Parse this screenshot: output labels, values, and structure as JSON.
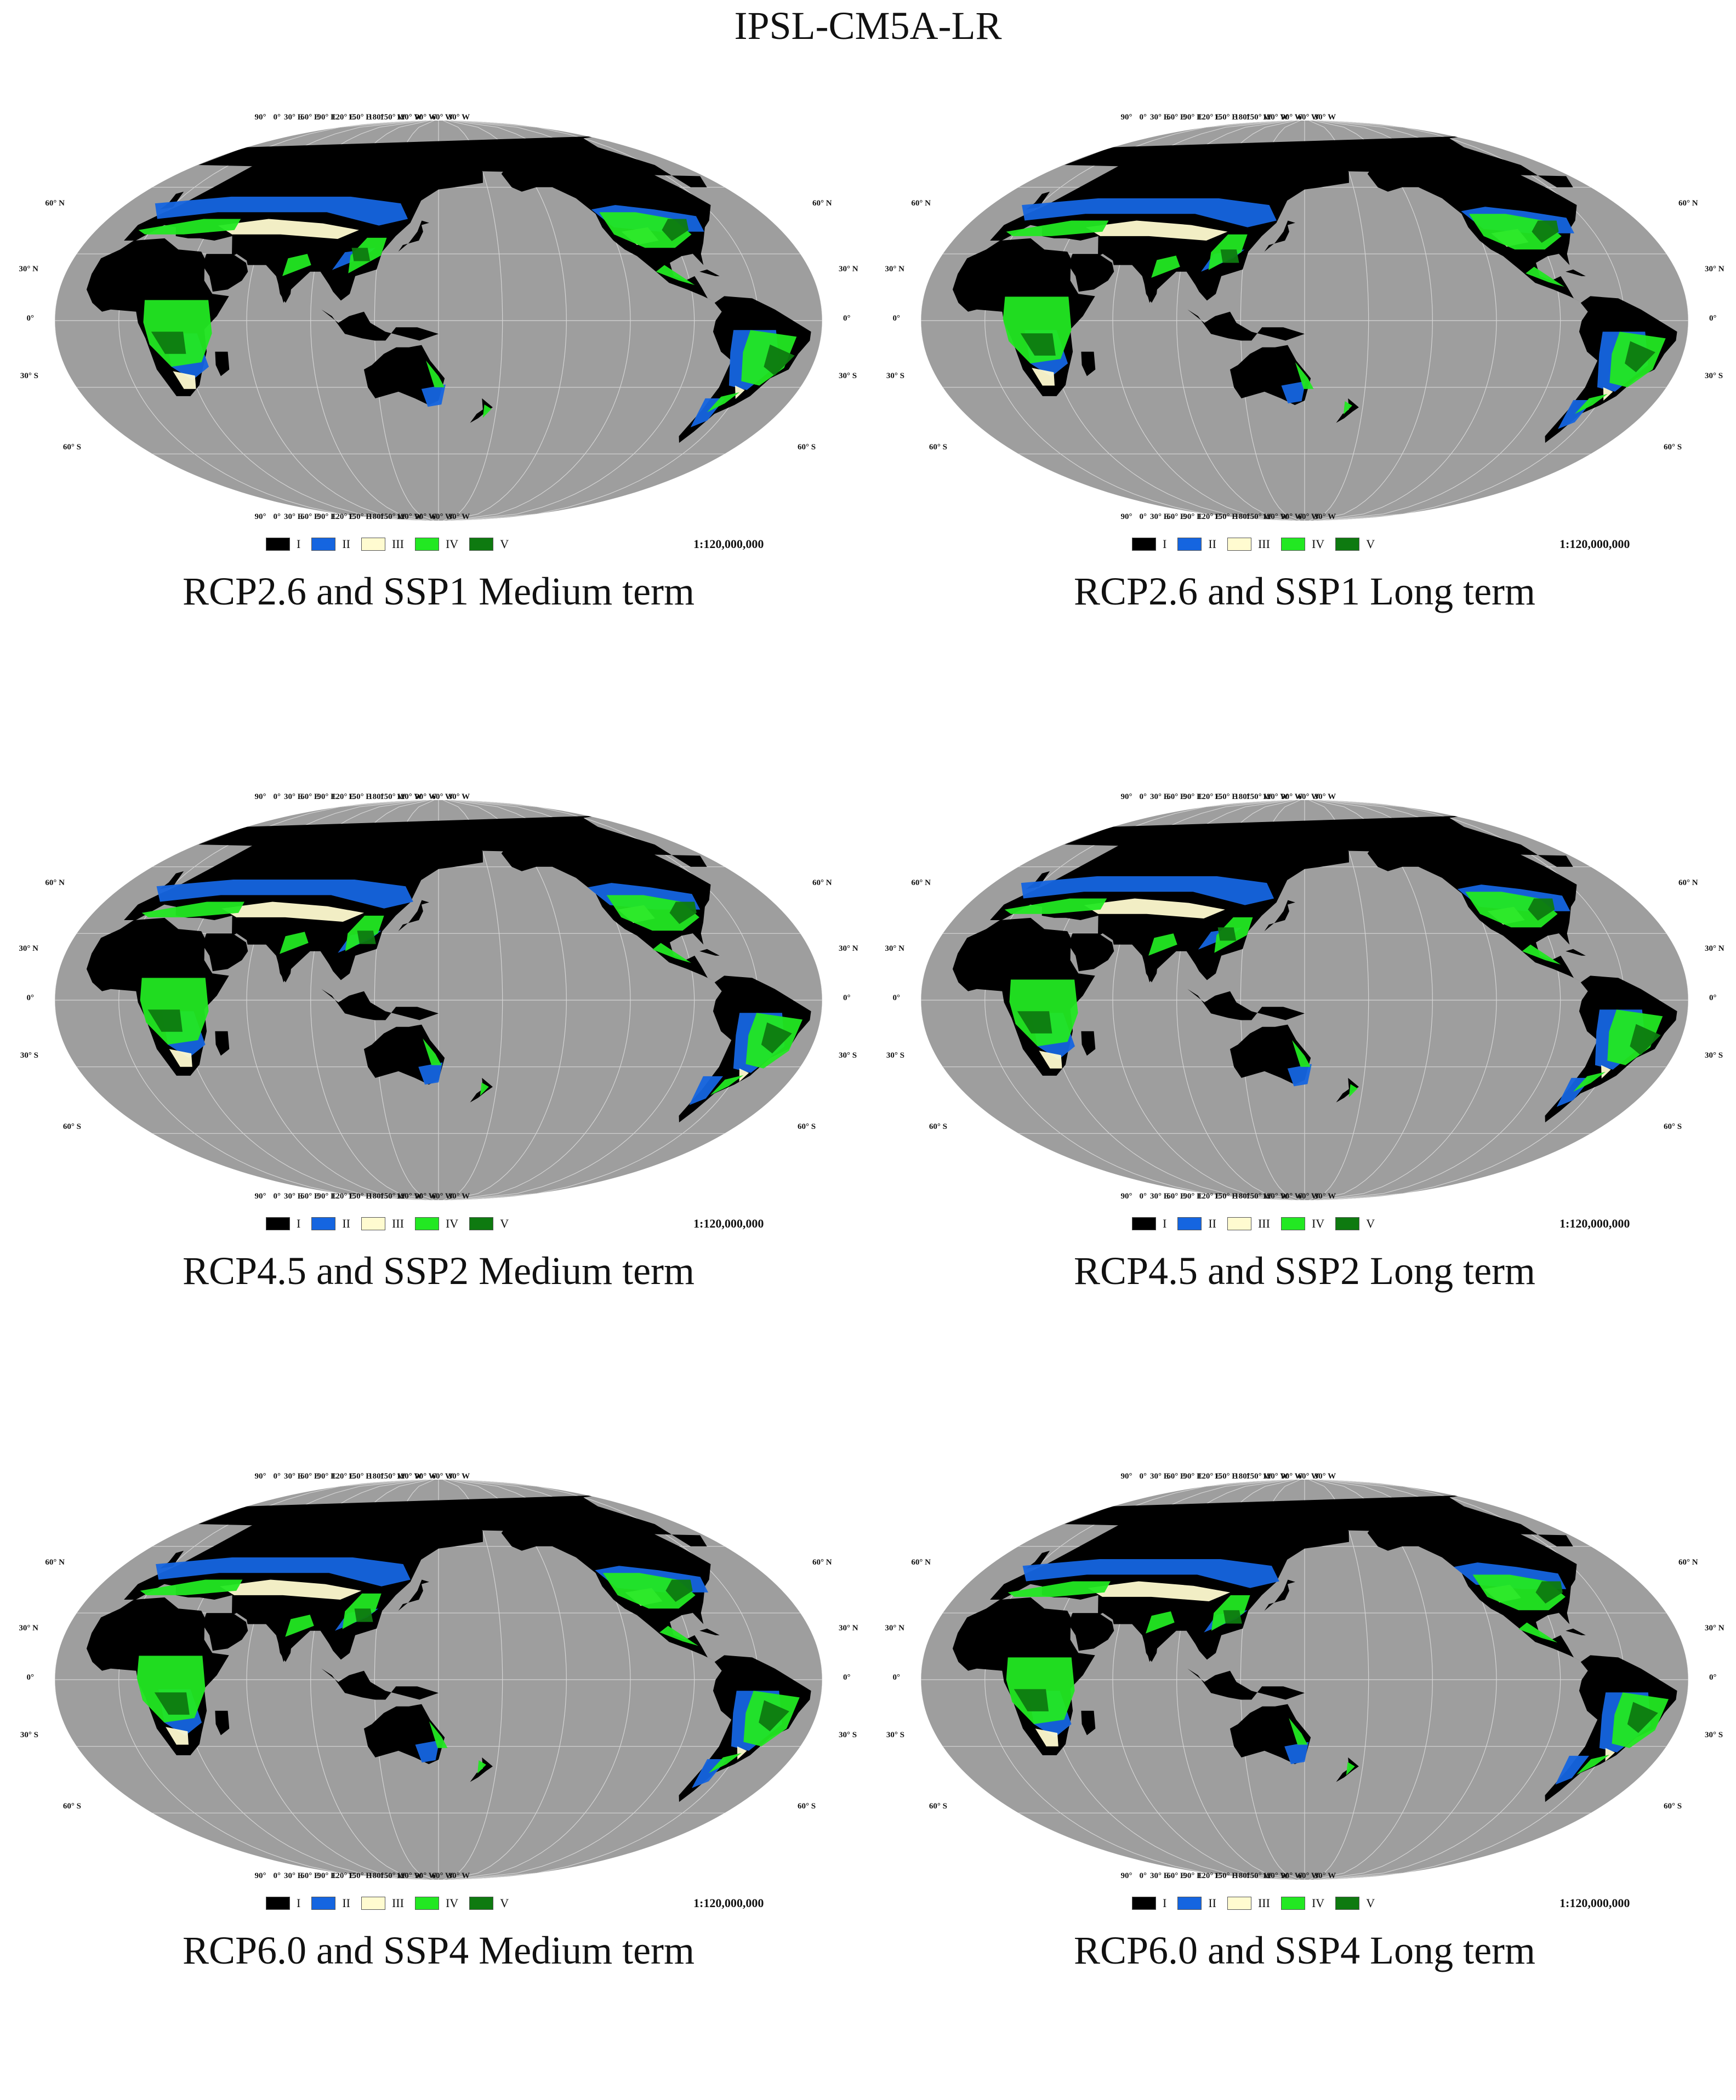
{
  "figure_title": "IPSL-CM5A-LR",
  "colors": {
    "ocean": "#9e9e9e",
    "class_I": "#000000",
    "class_II": "#1565e0",
    "class_III": "#fffbd0",
    "class_IV": "#22e822",
    "class_V": "#0e7a10",
    "graticule": "#d4d4d4"
  },
  "legend": [
    {
      "label": "I",
      "color_key": "class_I"
    },
    {
      "label": "II",
      "color_key": "class_II"
    },
    {
      "label": "III",
      "color_key": "class_III"
    },
    {
      "label": "IV",
      "color_key": "class_IV"
    },
    {
      "label": "V",
      "color_key": "class_V"
    }
  ],
  "scale": "1:120,000,000",
  "longitude_labels": [
    "90°",
    "0°",
    "30° E",
    "60° E",
    "90° E",
    "120° E",
    "150° E",
    "180°",
    "150° W",
    "120° W",
    "90° W",
    "60° W",
    "30° W"
  ],
  "latitude_labels_left": [
    "60° N",
    "30° N",
    "0°",
    "30° S",
    "60° S"
  ],
  "latitude_labels_right": [
    "60° N",
    "30° N",
    "0°",
    "30° S",
    "60° S"
  ],
  "panels": [
    {
      "caption": "RCP2.6 and SSP1 Medium term"
    },
    {
      "caption": "RCP2.6 and SSP1 Long term"
    },
    {
      "caption": "RCP4.5 and SSP2 Medium term"
    },
    {
      "caption": "RCP4.5 and SSP2 Long term"
    },
    {
      "caption": "RCP6.0 and SSP4 Medium term"
    },
    {
      "caption": "RCP6.0 and SSP4 Long term"
    }
  ]
}
